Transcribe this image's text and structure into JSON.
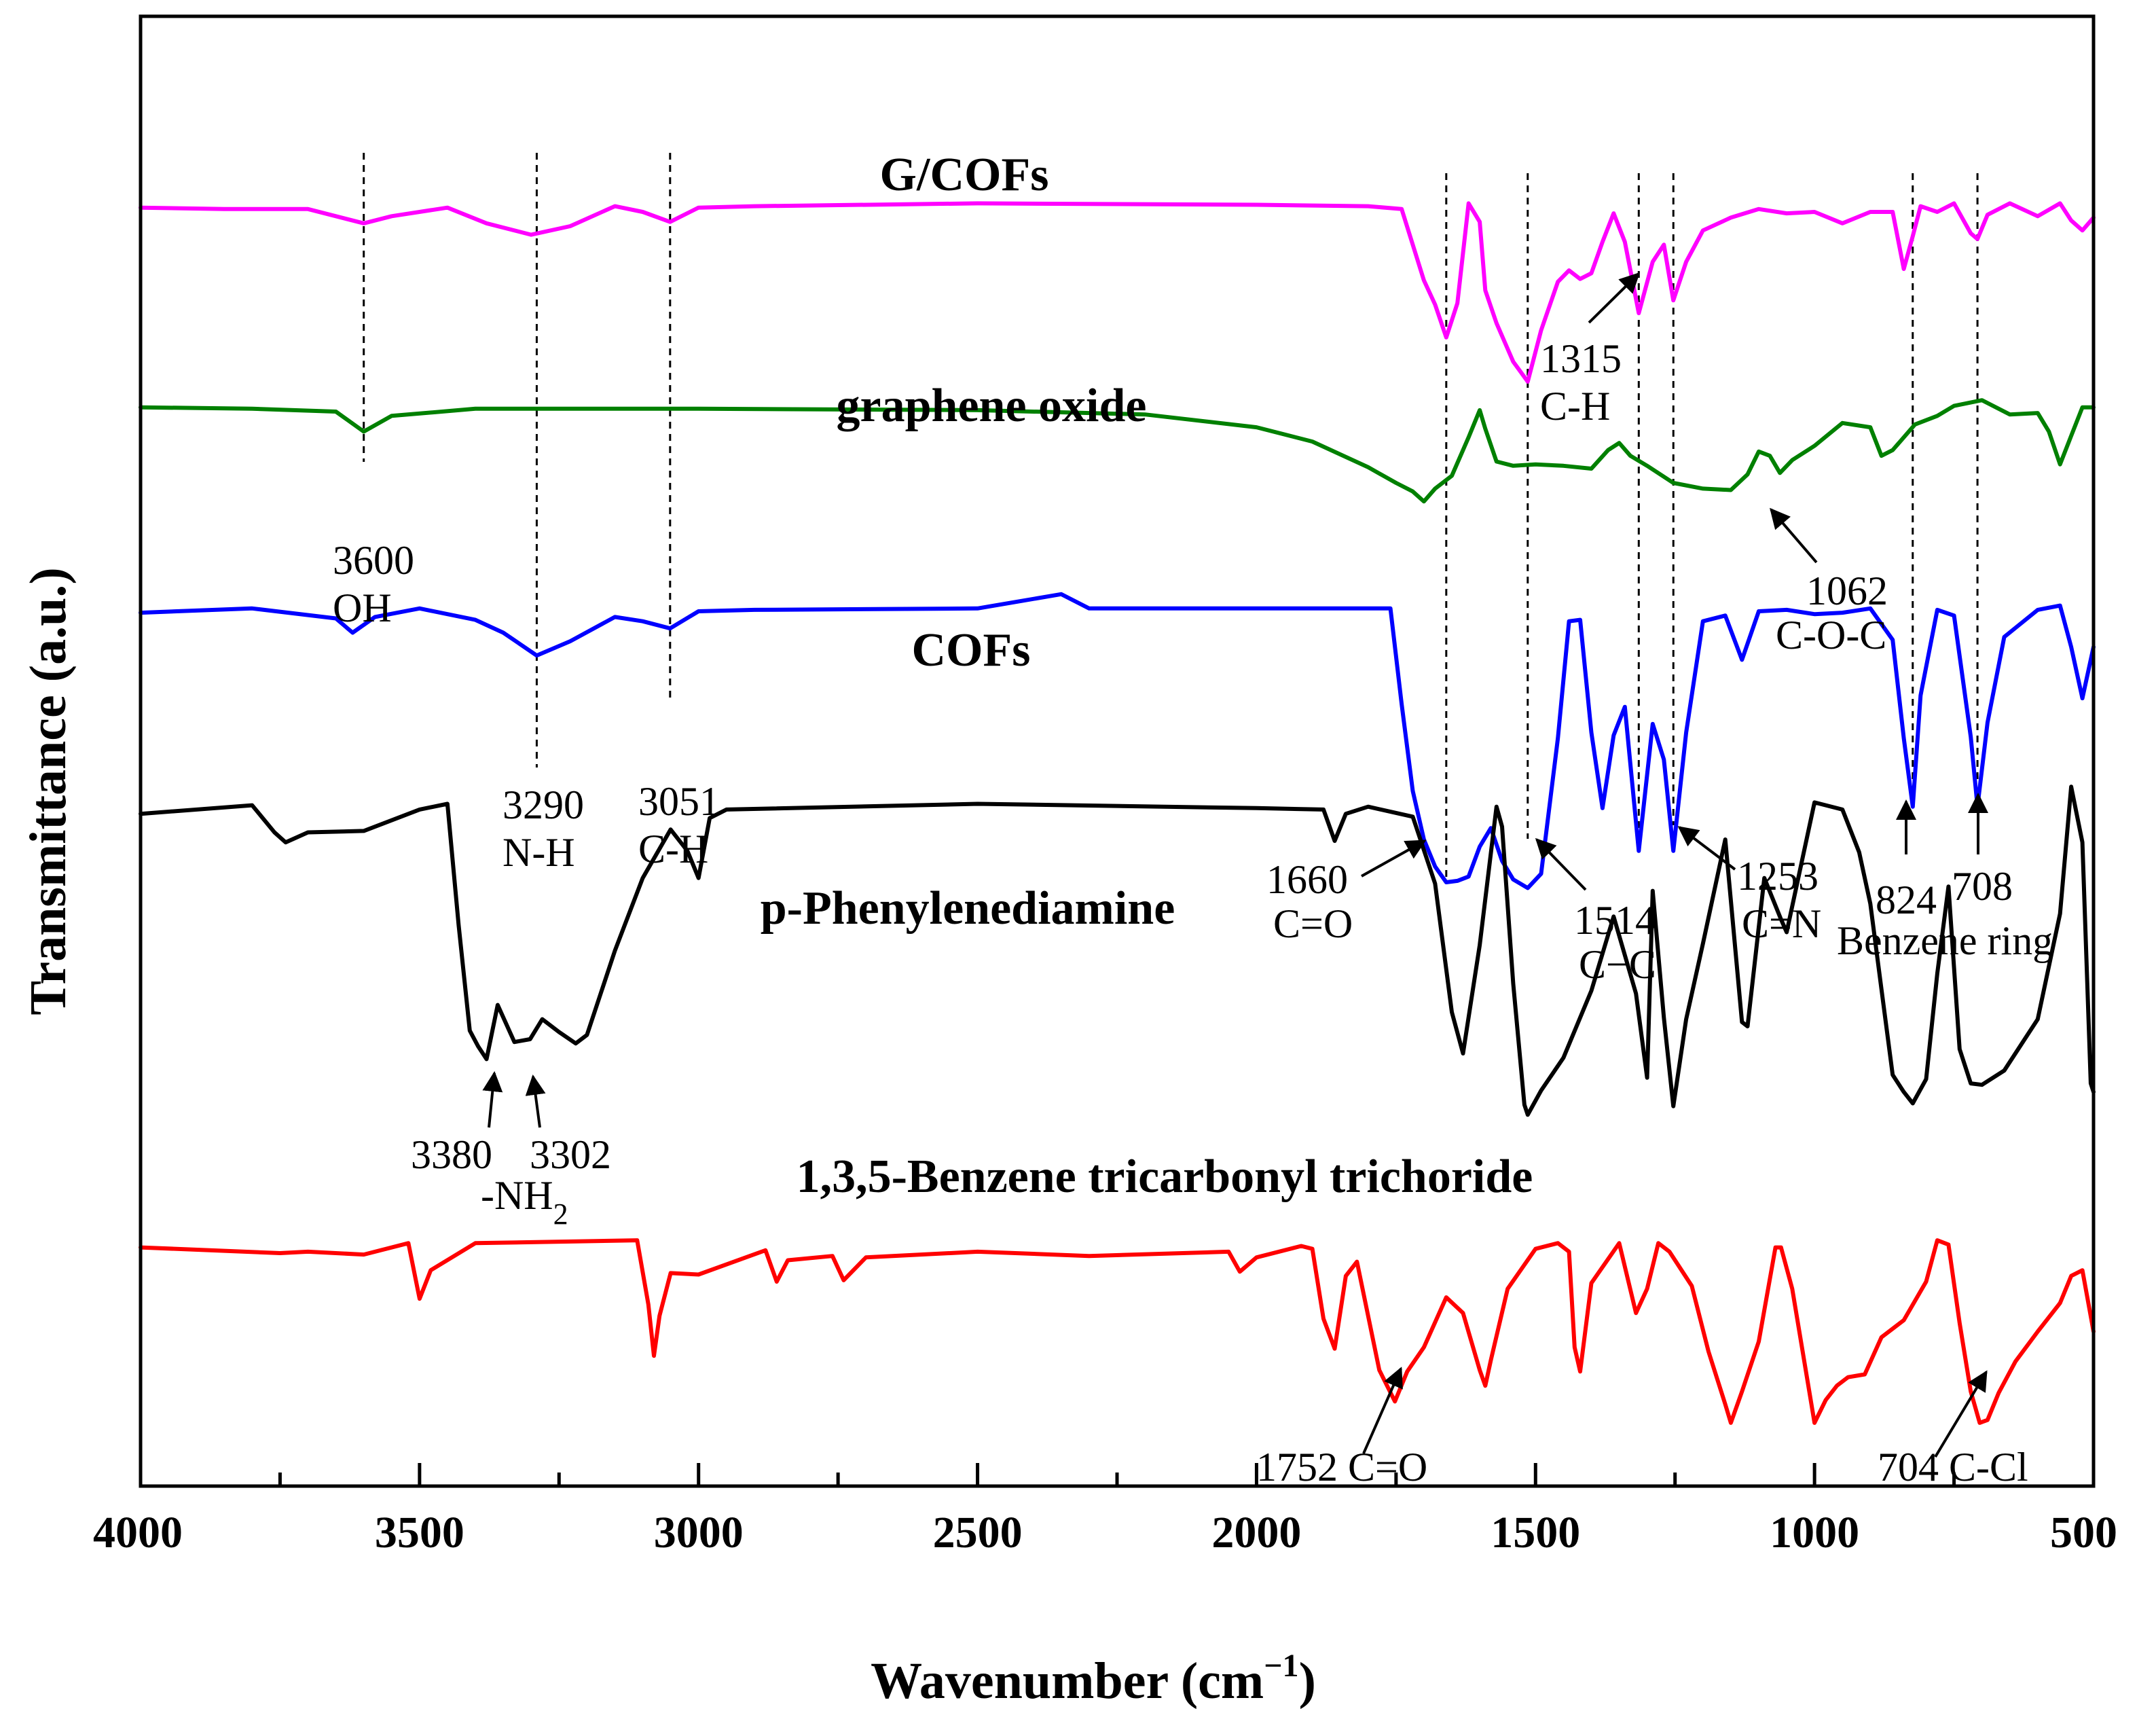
{
  "chart_data": {
    "type": "line",
    "title": "",
    "xlabel": "Wavenumber (cm",
    "xlabel_sup": "−1",
    "xlabel_close": ")",
    "ylabel": "Transmittance (a.u.)",
    "xlim": [
      4000,
      500
    ],
    "ylim": [
      0,
      100
    ],
    "xticks": [
      4000,
      3500,
      3000,
      2500,
      2000,
      1500,
      1000,
      500
    ],
    "grid": false,
    "legend": "none",
    "colors": {
      "gcofs": "#ff00ff",
      "go": "#008000",
      "cofs": "#0000ff",
      "ppd": "#000000",
      "btc": "#ff0000"
    },
    "series": [
      {
        "key": "gcofs",
        "name": "G/COFs",
        "x": [
          4000,
          3850,
          3700,
          3650,
          3600,
          3550,
          3450,
          3380,
          3300,
          3230,
          3150,
          3100,
          3051,
          3000,
          2900,
          2500,
          2000,
          1800,
          1740,
          1700,
          1680,
          1660,
          1640,
          1620,
          1600,
          1590,
          1570,
          1540,
          1514,
          1490,
          1460,
          1440,
          1420,
          1400,
          1380,
          1360,
          1340,
          1315,
          1290,
          1270,
          1253,
          1230,
          1200,
          1150,
          1100,
          1050,
          1000,
          950,
          900,
          860,
          840,
          824,
          810,
          780,
          750,
          720,
          708,
          690,
          650,
          600,
          560,
          540,
          520,
          500
        ],
        "values": [
          88.3,
          88.2,
          88.2,
          87.7,
          87.2,
          87.7,
          88.3,
          87.2,
          86.4,
          87.0,
          88.4,
          88.0,
          87.3,
          88.3,
          88.4,
          88.6,
          88.5,
          88.4,
          88.2,
          83.2,
          81.5,
          79.2,
          81.6,
          88.6,
          87.3,
          82.5,
          80.2,
          77.5,
          76.1,
          79.7,
          83.1,
          83.9,
          83.3,
          83.7,
          85.9,
          87.9,
          85.9,
          80.9,
          84.5,
          85.7,
          81.8,
          84.5,
          86.7,
          87.6,
          88.2,
          87.9,
          88.0,
          87.2,
          88.0,
          88.0,
          84.0,
          86.3,
          88.4,
          88.0,
          88.6,
          86.5,
          86.1,
          87.8,
          88.6,
          87.7,
          88.6,
          87.4,
          86.7,
          87.6
        ]
      },
      {
        "key": "go",
        "name": "graphene oxide",
        "x": [
          4000,
          3800,
          3650,
          3600,
          3550,
          3400,
          3000,
          2500,
          2200,
          2000,
          1900,
          1800,
          1750,
          1720,
          1700,
          1680,
          1650,
          1620,
          1600,
          1590,
          1570,
          1540,
          1500,
          1450,
          1400,
          1370,
          1350,
          1330,
          1300,
          1253,
          1200,
          1150,
          1120,
          1100,
          1080,
          1062,
          1040,
          1000,
          950,
          900,
          880,
          860,
          820,
          780,
          750,
          700,
          650,
          600,
          580,
          560,
          540,
          520,
          500
        ],
        "values": [
          74.3,
          74.2,
          74.0,
          72.6,
          73.7,
          74.2,
          74.2,
          74.1,
          73.8,
          72.9,
          71.9,
          70.1,
          69.0,
          68.4,
          67.7,
          68.6,
          69.5,
          72.2,
          74.1,
          72.8,
          70.5,
          70.2,
          70.3,
          70.2,
          70.0,
          71.3,
          71.8,
          70.9,
          70.2,
          69.0,
          68.6,
          68.5,
          69.6,
          71.2,
          70.9,
          69.7,
          70.6,
          71.6,
          73.2,
          72.9,
          70.9,
          71.3,
          73.1,
          73.7,
          74.4,
          74.8,
          73.8,
          73.9,
          72.6,
          70.3,
          72.3,
          74.3,
          74.3
        ]
      },
      {
        "key": "cofs",
        "name": "COFs",
        "x": [
          4000,
          3800,
          3650,
          3620,
          3580,
          3500,
          3400,
          3350,
          3290,
          3230,
          3150,
          3100,
          3051,
          3000,
          2900,
          2500,
          2350,
          2300,
          2000,
          1760,
          1740,
          1720,
          1700,
          1680,
          1660,
          1640,
          1620,
          1600,
          1580,
          1560,
          1540,
          1514,
          1490,
          1460,
          1440,
          1420,
          1400,
          1380,
          1360,
          1340,
          1315,
          1290,
          1270,
          1253,
          1230,
          1200,
          1160,
          1130,
          1100,
          1050,
          1000,
          950,
          900,
          860,
          840,
          824,
          810,
          780,
          750,
          720,
          708,
          690,
          660,
          600,
          560,
          540,
          520,
          500
        ],
        "values": [
          59.9,
          60.2,
          59.5,
          58.5,
          59.6,
          60.2,
          59.4,
          58.5,
          56.9,
          57.9,
          59.6,
          59.3,
          58.8,
          60.0,
          60.1,
          60.2,
          61.2,
          60.2,
          60.2,
          60.2,
          53.5,
          47.4,
          44.0,
          42.1,
          41.0,
          41.1,
          41.4,
          43.5,
          44.8,
          42.5,
          41.2,
          40.6,
          41.6,
          51.1,
          59.3,
          59.4,
          51.5,
          46.2,
          51.3,
          53.3,
          43.2,
          52.1,
          49.6,
          43.2,
          51.5,
          59.3,
          59.7,
          56.6,
          60.0,
          60.1,
          59.8,
          59.9,
          60.2,
          58.0,
          51.1,
          46.3,
          54.1,
          60.1,
          59.7,
          51.2,
          46.3,
          52.2,
          58.2,
          60.1,
          60.4,
          57.5,
          53.9,
          57.5
        ]
      },
      {
        "key": "ppd",
        "name": "p-Phenylenediamine",
        "x": [
          4000,
          3800,
          3760,
          3740,
          3700,
          3600,
          3500,
          3450,
          3430,
          3410,
          3395,
          3380,
          3360,
          3330,
          3302,
          3280,
          3250,
          3220,
          3200,
          3150,
          3100,
          3050,
          3020,
          3000,
          2980,
          2950,
          2500,
          2000,
          1880,
          1860,
          1840,
          1800,
          1720,
          1680,
          1650,
          1630,
          1600,
          1570,
          1560,
          1540,
          1520,
          1514,
          1490,
          1450,
          1400,
          1360,
          1320,
          1300,
          1290,
          1270,
          1253,
          1230,
          1200,
          1160,
          1130,
          1120,
          1090,
          1060,
          1050,
          1000,
          950,
          920,
          900,
          880,
          860,
          840,
          824,
          800,
          780,
          760,
          740,
          720,
          700,
          660,
          600,
          560,
          540,
          520,
          505,
          500
        ],
        "values": [
          45.8,
          46.4,
          44.5,
          43.8,
          44.5,
          44.6,
          46.1,
          46.5,
          38.0,
          30.6,
          29.5,
          28.6,
          32.4,
          29.8,
          30.0,
          31.4,
          30.5,
          29.7,
          30.3,
          36.2,
          41.3,
          44.7,
          43.2,
          41.3,
          45.5,
          46.1,
          46.5,
          46.2,
          46.1,
          43.9,
          45.8,
          46.3,
          45.6,
          40.9,
          31.9,
          29.0,
          36.6,
          46.3,
          44.9,
          33.9,
          25.4,
          24.7,
          26.4,
          28.7,
          33.4,
          38.6,
          33.2,
          27.3,
          40.4,
          31.5,
          25.3,
          31.4,
          36.7,
          44.0,
          31.2,
          30.9,
          41.3,
          38.4,
          37.5,
          46.6,
          46.1,
          43.1,
          39.5,
          33.5,
          27.5,
          26.3,
          25.5,
          27.2,
          34.6,
          40.7,
          29.3,
          26.9,
          26.8,
          27.8,
          31.4,
          38.8,
          47.7,
          43.8,
          26.9,
          26.3
        ]
      },
      {
        "key": "btc",
        "name": "1,3,5-Benzene tricarbonyl trichoride",
        "x": [
          4000,
          3750,
          3700,
          3600,
          3520,
          3500,
          3480,
          3400,
          3110,
          3090,
          3080,
          3070,
          3050,
          3000,
          2880,
          2860,
          2840,
          2760,
          2740,
          2700,
          2500,
          2300,
          2050,
          2030,
          2000,
          1920,
          1900,
          1880,
          1860,
          1840,
          1820,
          1780,
          1752,
          1730,
          1700,
          1660,
          1630,
          1600,
          1590,
          1580,
          1550,
          1500,
          1460,
          1440,
          1430,
          1420,
          1400,
          1350,
          1320,
          1300,
          1280,
          1260,
          1220,
          1190,
          1160,
          1150,
          1130,
          1100,
          1070,
          1060,
          1040,
          1000,
          980,
          960,
          940,
          910,
          880,
          840,
          800,
          780,
          760,
          740,
          720,
          704,
          690,
          670,
          640,
          600,
          560,
          540,
          520,
          500
        ],
        "values": [
          15.4,
          15.0,
          15.1,
          14.9,
          15.7,
          11.8,
          13.8,
          15.7,
          15.9,
          11.4,
          7.8,
          10.6,
          13.6,
          13.5,
          15.2,
          13.0,
          14.5,
          14.8,
          13.1,
          14.7,
          15.1,
          14.8,
          15.1,
          13.7,
          14.7,
          15.5,
          15.3,
          10.4,
          8.3,
          13.4,
          14.4,
          6.8,
          4.6,
          6.7,
          8.4,
          11.9,
          10.8,
          6.8,
          5.7,
          7.5,
          12.5,
          15.3,
          15.7,
          15.1,
          8.4,
          6.7,
          12.9,
          15.7,
          10.8,
          12.5,
          15.7,
          15.1,
          12.7,
          8.1,
          4.4,
          3.1,
          5.3,
          8.8,
          15.4,
          15.4,
          12.5,
          3.1,
          4.7,
          5.7,
          6.3,
          6.5,
          9.1,
          10.3,
          13.0,
          15.9,
          15.6,
          10.1,
          5.3,
          3.1,
          3.3,
          5.2,
          7.4,
          9.5,
          11.5,
          13.4,
          13.8,
          9.5
        ]
      }
    ],
    "series_titles": [
      {
        "key": "gcofs",
        "text": "G/COFs"
      },
      {
        "key": "go",
        "text": "graphene oxide"
      },
      {
        "key": "cofs",
        "text": "COFs"
      },
      {
        "key": "ppd",
        "text": "p-Phenylenediamine"
      },
      {
        "key": "btc",
        "text": "1,3,5-Benzene tricarbonyl trichoride"
      }
    ],
    "reference_lines": [
      3600,
      3290,
      3051,
      1660,
      1514,
      1315,
      1253,
      824,
      708
    ],
    "annotations": {
      "a3600": {
        "value": "3600",
        "label": "OH"
      },
      "a3290": {
        "value": "3290",
        "label": "N-H"
      },
      "a3051": {
        "value": "3051",
        "label": "C-H"
      },
      "a1315": {
        "value": "1315",
        "label": "C-H"
      },
      "a1062": {
        "value": "1062",
        "label": "C-O-C"
      },
      "a1660": {
        "value": "1660",
        "label": "C=O"
      },
      "a1514": {
        "value": "1514",
        "label": "C−C"
      },
      "a1253": {
        "value": "1253",
        "label": "C=N"
      },
      "a824": {
        "value": "824"
      },
      "a708": {
        "value": "708"
      },
      "benzene": {
        "label": "Benzene ring"
      },
      "a3380": {
        "value": "3380"
      },
      "a3302": {
        "value": "3302"
      },
      "nh2": {
        "label": "-NH",
        "sub": "2"
      },
      "a1752": {
        "value": "1752 C=O"
      },
      "a704": {
        "value": "704 C-Cl"
      }
    }
  }
}
